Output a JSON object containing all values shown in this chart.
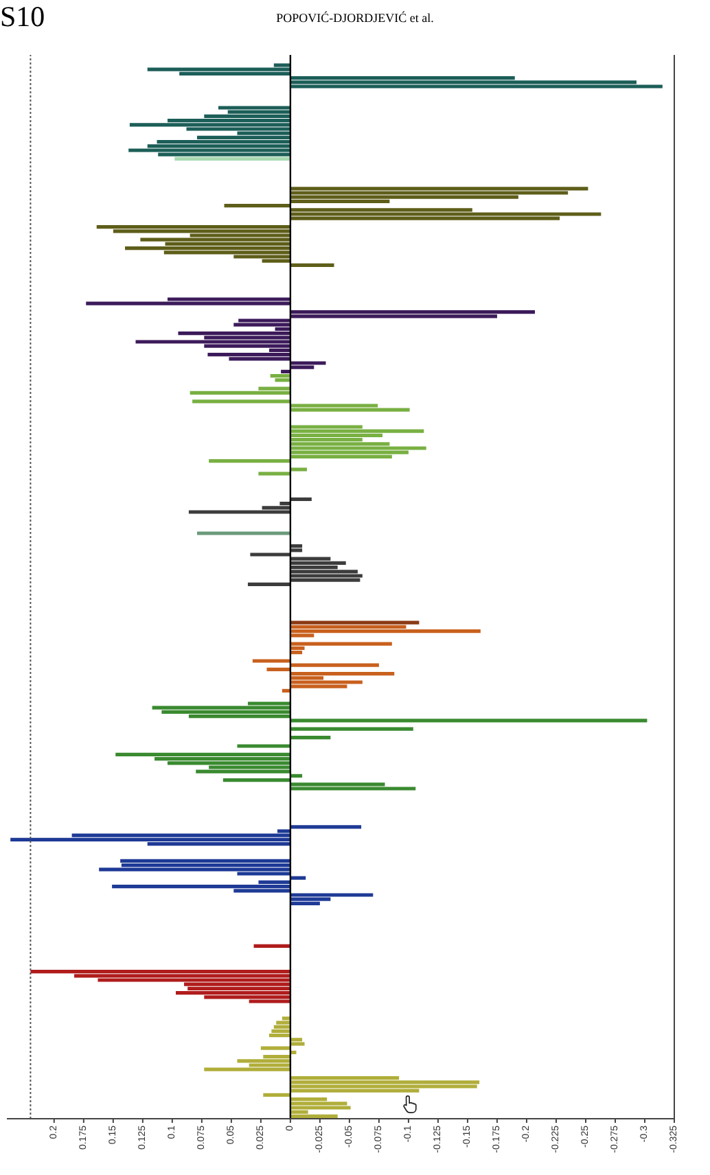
{
  "chart_data": {
    "type": "bar",
    "orientation": "horizontal",
    "annotations": [
      "S10",
      "POPOVIĆ-DJORDJEVIĆ et al."
    ],
    "categories": [
      null,
      null,
      null,
      null,
      null,
      null,
      null,
      null,
      null,
      null,
      null,
      null,
      null,
      null,
      null,
      null,
      null,
      null,
      null,
      null,
      null,
      null,
      null,
      null,
      null,
      null,
      null,
      null,
      null,
      null,
      null,
      null,
      null,
      null,
      null,
      null,
      null,
      null,
      null,
      null,
      null,
      null,
      null,
      null,
      null,
      null,
      null,
      null,
      null,
      null,
      null,
      null,
      null,
      null,
      null,
      null,
      null,
      null,
      null,
      null,
      null,
      null,
      null,
      null,
      null,
      null,
      null,
      null,
      null,
      null,
      null,
      null,
      null,
      null,
      null,
      null,
      null,
      null,
      null,
      null,
      null,
      null,
      null,
      null,
      null,
      null,
      null,
      null,
      null,
      null,
      null,
      null,
      null,
      null,
      null,
      null,
      null,
      null,
      null,
      null,
      null,
      null,
      null,
      null,
      null,
      null,
      null,
      null,
      null,
      null,
      null,
      null,
      null,
      null,
      null,
      null,
      null,
      null,
      null,
      null,
      null,
      null,
      null,
      null,
      null,
      null,
      null,
      null,
      null,
      null,
      null,
      null,
      null,
      null,
      null,
      null,
      null,
      null,
      null,
      null,
      null,
      null,
      null,
      null,
      null,
      null,
      null,
      null,
      null,
      null,
      null,
      null,
      null,
      null,
      null,
      null,
      null,
      null,
      null,
      null,
      null,
      null,
      null,
      null,
      null,
      null,
      null,
      null,
      null,
      null,
      null,
      null,
      null,
      null,
      null,
      null,
      null,
      null,
      null,
      null,
      null,
      null,
      null,
      null,
      null,
      null,
      null,
      null,
      null,
      null,
      null,
      null,
      null,
      null,
      null,
      null,
      null,
      null,
      null,
      null,
      null,
      null,
      null,
      null,
      null,
      null,
      null,
      null,
      null,
      null,
      null,
      null,
      null,
      null,
      null,
      null,
      null,
      null,
      null,
      null,
      null,
      null,
      null,
      null,
      null,
      null,
      null,
      null,
      null,
      null,
      null,
      null,
      null,
      null,
      null,
      null,
      null,
      null,
      null,
      null,
      null,
      null,
      null,
      null,
      null,
      null,
      null,
      null,
      null,
      null
    ],
    "values": [
      null,
      null,
      0.014,
      0.121,
      0.094,
      -0.19,
      -0.293,
      -0.315,
      null,
      null,
      null,
      null,
      0.061,
      0.053,
      0.073,
      0.104,
      0.136,
      0.088,
      0.045,
      0.079,
      0.113,
      0.121,
      0.137,
      0.112,
      0.098,
      null,
      null,
      null,
      null,
      null,
      null,
      -0.252,
      -0.235,
      -0.193,
      -0.084,
      0.056,
      -0.154,
      -0.263,
      -0.228,
      null,
      0.164,
      0.15,
      0.085,
      0.127,
      0.106,
      0.14,
      0.107,
      0.048,
      0.024,
      -0.037,
      null,
      null,
      null,
      null,
      null,
      null,
      null,
      0.104,
      0.173,
      null,
      -0.207,
      -0.175,
      0.044,
      0.048,
      0.013,
      0.095,
      0.073,
      0.131,
      0.073,
      0.018,
      0.07,
      0.052,
      -0.03,
      -0.02,
      0.008,
      0.017,
      0.013,
      null,
      0.027,
      0.085,
      null,
      0.083,
      -0.074,
      -0.101,
      null,
      null,
      null,
      -0.061,
      -0.113,
      -0.078,
      -0.061,
      -0.084,
      -0.115,
      -0.1,
      -0.086,
      0.069,
      null,
      -0.014,
      0.027,
      null,
      null,
      null,
      null,
      null,
      -0.018,
      0.009,
      0.024,
      0.086,
      null,
      null,
      null,
      null,
      0.079,
      null,
      null,
      -0.01,
      -0.01,
      0.034,
      -0.034,
      -0.047,
      -0.04,
      -0.057,
      -0.061,
      -0.059,
      0.036,
      null,
      null,
      null,
      null,
      null,
      null,
      null,
      null,
      -0.109,
      -0.098,
      -0.161,
      -0.02,
      null,
      -0.086,
      -0.012,
      -0.01,
      null,
      0.032,
      -0.075,
      0.02,
      -0.088,
      -0.028,
      -0.061,
      -0.048,
      0.007,
      null,
      null,
      0.036,
      0.117,
      0.109,
      0.086,
      -0.302,
      null,
      -0.104,
      null,
      -0.034,
      null,
      0.045,
      null,
      0.148,
      0.115,
      0.104,
      0.069,
      0.08,
      -0.01,
      0.057,
      -0.08,
      -0.106,
      null,
      null,
      null,
      null,
      null,
      null,
      null,
      null,
      -0.06,
      0.011,
      0.185,
      0.237,
      0.121,
      null,
      null,
      null,
      0.144,
      0.143,
      0.162,
      0.045,
      -0.013,
      0.027,
      0.151,
      0.048,
      -0.07,
      -0.034,
      -0.025,
      null,
      null,
      null,
      null,
      null,
      null,
      null,
      null,
      null,
      0.031,
      null,
      null,
      null,
      null,
      null,
      0.22,
      0.183,
      0.163,
      0.09,
      0.087,
      0.097,
      0.073,
      0.035,
      null,
      null,
      null,
      0.007,
      0.012,
      0.014,
      0.016,
      0.018,
      -0.01,
      -0.012,
      0.025,
      -0.005,
      0.023,
      0.045,
      0.035,
      0.073,
      null,
      -0.092,
      -0.16,
      -0.158,
      -0.109,
      0.023,
      -0.031,
      -0.048,
      -0.051,
      -0.015,
      -0.04
    ],
    "colors": [
      "#1c5e58",
      "#1c5e58",
      "#1c5e58",
      "#1c5e58",
      "#1c5e58",
      "#1c5e58",
      "#1c5e58",
      "#1c5e58",
      "#1c5e58",
      "#1c5e58",
      "#1c5e58",
      "#1c5e58",
      "#1c5e58",
      "#1c5e58",
      "#1c5e58",
      "#1c5e58",
      "#1c5e58",
      "#1c5e58",
      "#1c5e58",
      "#1c5e58",
      "#1c5e58",
      "#1c5e58",
      "#1c5e58",
      "#1c5e58",
      "#a8d8b0",
      "#5e5e1a",
      "#5e5e1a",
      "#5e5e1a",
      "#5e5e1a",
      "#5e5e1a",
      "#5e5e1a",
      "#5e5e1a",
      "#5e5e1a",
      "#5e5e1a",
      "#5e5e1a",
      "#5e5e1a",
      "#5e5e1a",
      "#5e5e1a",
      "#5e5e1a",
      "#5e5e1a",
      "#5e5e1a",
      "#5e5e1a",
      "#5e5e1a",
      "#5e5e1a",
      "#5e5e1a",
      "#5e5e1a",
      "#5e5e1a",
      "#5e5e1a",
      "#5e5e1a",
      "#5e5e1a",
      "#3c1a5a",
      "#3c1a5a",
      "#3c1a5a",
      "#3c1a5a",
      "#3c1a5a",
      "#3c1a5a",
      "#3c1a5a",
      "#3c1a5a",
      "#3c1a5a",
      "#3c1a5a",
      "#3c1a5a",
      "#3c1a5a",
      "#3c1a5a",
      "#3c1a5a",
      "#3c1a5a",
      "#3c1a5a",
      "#3c1a5a",
      "#3c1a5a",
      "#3c1a5a",
      "#3c1a5a",
      "#3c1a5a",
      "#3c1a5a",
      "#3c1a5a",
      "#3c1a5a",
      "#3c1a5a",
      "#78b042",
      "#78b042",
      "#78b042",
      "#78b042",
      "#78b042",
      "#78b042",
      "#78b042",
      "#78b042",
      "#78b042",
      "#78b042",
      "#78b042",
      "#78b042",
      "#78b042",
      "#78b042",
      "#78b042",
      "#78b042",
      "#78b042",
      "#78b042",
      "#78b042",
      "#78b042",
      "#78b042",
      "#78b042",
      "#78b042",
      "#78b042",
      "#78b042",
      "#3c3c3c",
      "#3c3c3c",
      "#3c3c3c",
      "#3c3c3c",
      "#3c3c3c",
      "#3c3c3c",
      "#3c3c3c",
      "#3c3c3c",
      "#3c3c3c",
      "#3c3c3c",
      "#3c3c3c",
      "#3c3c3c",
      "#6a9a7a",
      "#3c3c3c",
      "#3c3c3c",
      "#3c3c3c",
      "#3c3c3c",
      "#3c3c3c",
      "#3c3c3c",
      "#3c3c3c",
      "#3c3c3c",
      "#3c3c3c",
      "#3c3c3c",
      "#3c3c3c",
      "#3c3c3c",
      "#c8601e",
      "#c8601e",
      "#c8601e",
      "#c8601e",
      "#c8601e",
      "#c8601e",
      "#c8601e",
      "#c8601e",
      "#8b3a14",
      "#c8601e",
      "#c8601e",
      "#c8601e",
      "#c8601e",
      "#c8601e",
      "#c8601e",
      "#c8601e",
      "#c8601e",
      "#c8601e",
      "#c8601e",
      "#c8601e",
      "#c8601e",
      "#c8601e",
      "#c8601e",
      "#c8601e",
      "#c8601e",
      "#3a8a30",
      "#3a8a30",
      "#3a8a30",
      "#3a8a30",
      "#3a8a30",
      "#3a8a30",
      "#3a8a30",
      "#3a8a30",
      "#3a8a30",
      "#3a8a30",
      "#3a8a30",
      "#3a8a30",
      "#3a8a30",
      "#3a8a30",
      "#3a8a30",
      "#3a8a30",
      "#3a8a30",
      "#3a8a30",
      "#3a8a30",
      "#3a8a30",
      "#3a8a30",
      "#3a8a30",
      "#3a8a30",
      "#3a8a30",
      "#3a8a30",
      "#1e3a96",
      "#1e3a96",
      "#1e3a96",
      "#1e3a96",
      "#1e3a96",
      "#1e3a96",
      "#1e3a96",
      "#1e3a96",
      "#1e3a96",
      "#1e3a96",
      "#1e3a96",
      "#1e3a96",
      "#1e3a96",
      "#1e3a96",
      "#1e3a96",
      "#1e3a96",
      "#1e3a96",
      "#1e3a96",
      "#1e3a96",
      "#1e3a96",
      "#1e3a96",
      "#1e3a96",
      "#1e3a96",
      "#1e3a96",
      "#1e3a96",
      "#b01c1c",
      "#b01c1c",
      "#b01c1c",
      "#b01c1c",
      "#b01c1c",
      "#b01c1c",
      "#b01c1c",
      "#b01c1c",
      "#b01c1c",
      "#b01c1c",
      "#b01c1c",
      "#b01c1c",
      "#b01c1c",
      "#b01c1c",
      "#b01c1c",
      "#b01c1c",
      "#b01c1c",
      "#b01c1c",
      "#b01c1c",
      "#b01c1c",
      "#b01c1c",
      "#b01c1c",
      "#b01c1c",
      "#b01c1c",
      "#b01c1c",
      "#b0ae3a",
      "#b0ae3a",
      "#b0ae3a",
      "#b0ae3a",
      "#b0ae3a",
      "#b0ae3a",
      "#b0ae3a",
      "#b0ae3a",
      "#b0ae3a",
      "#b0ae3a",
      "#b0ae3a",
      "#b0ae3a",
      "#b0ae3a",
      "#b0ae3a",
      "#b0ae3a",
      "#b0ae3a",
      "#b0ae3a",
      "#b0ae3a",
      "#b0ae3a",
      "#b0ae3a",
      "#b0ae3a",
      "#b0ae3a",
      "#b0ae3a",
      "#b0ae3a",
      "#b0ae3a"
    ],
    "xlim": [
      0.24,
      -0.325
    ],
    "xticks": [
      0.2,
      0.175,
      0.15,
      0.125,
      0.1,
      0.075,
      0.05,
      0.025,
      0,
      -0.025,
      -0.05,
      -0.075,
      -0.1,
      -0.125,
      -0.15,
      -0.175,
      -0.2,
      -0.225,
      -0.25,
      -0.275,
      -0.3,
      -0.325
    ],
    "ref_lines": [
      {
        "axis": "x",
        "value": 0
      },
      {
        "axis": "x",
        "value": 0.22,
        "line_style": "dotted",
        "color": "#555555"
      }
    ]
  }
}
